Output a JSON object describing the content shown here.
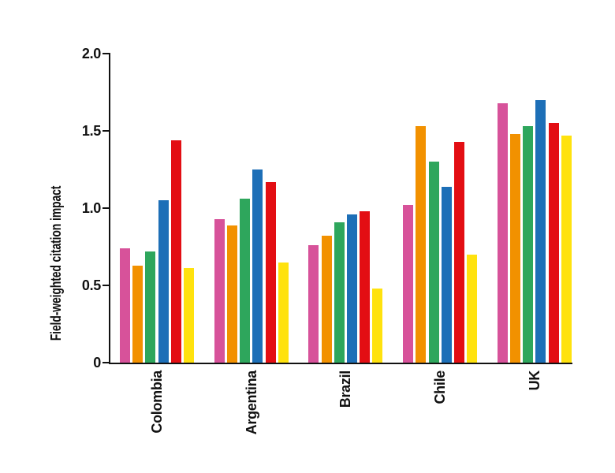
{
  "chart_data": {
    "type": "bar",
    "title": "",
    "xlabel": "",
    "ylabel": "Field-weighted citation impact",
    "ylim": [
      0,
      2.0
    ],
    "yticks": [
      0,
      0.5,
      1.0,
      1.5,
      2.0
    ],
    "ytick_labels": [
      "0",
      "0.5",
      "1.0",
      "1.5",
      "2.0"
    ],
    "grid": false,
    "legend": false,
    "axis_color": "#111111",
    "background_color": "#ffffff",
    "categories": [
      "Colombia",
      "Argentina",
      "Brazil",
      "Chile",
      "UK"
    ],
    "series": [
      {
        "name": "pink",
        "color": "#d7529a",
        "values": [
          0.74,
          0.93,
          0.76,
          1.02,
          1.68
        ]
      },
      {
        "name": "orange",
        "color": "#f29100",
        "values": [
          0.63,
          0.89,
          0.82,
          1.53,
          1.48
        ]
      },
      {
        "name": "green",
        "color": "#2ea65c",
        "values": [
          0.72,
          1.06,
          0.91,
          1.3,
          1.53
        ]
      },
      {
        "name": "blue",
        "color": "#1d6fb7",
        "values": [
          1.05,
          1.25,
          0.96,
          1.14,
          1.7
        ]
      },
      {
        "name": "red",
        "color": "#e30e13",
        "values": [
          1.44,
          1.17,
          0.98,
          1.43,
          1.55
        ]
      },
      {
        "name": "yellow",
        "color": "#ffe20e",
        "values": [
          0.61,
          0.65,
          0.48,
          0.7,
          1.47
        ]
      }
    ]
  }
}
